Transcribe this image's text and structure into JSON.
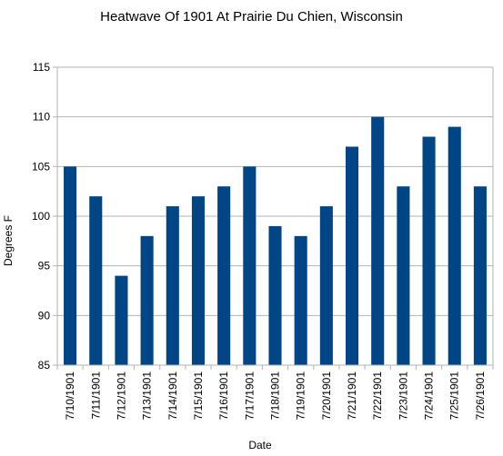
{
  "chart_data": {
    "type": "bar",
    "title": "Heatwave Of 1901 At Prairie Du Chien, Wisconsin",
    "xlabel": "Date",
    "ylabel": "Degrees F",
    "categories": [
      "7/10/1901",
      "7/11/1901",
      "7/12/1901",
      "7/13/1901",
      "7/14/1901",
      "7/15/1901",
      "7/16/1901",
      "7/17/1901",
      "7/18/1901",
      "7/19/1901",
      "7/20/1901",
      "7/21/1901",
      "7/22/1901",
      "7/23/1901",
      "7/24/1901",
      "7/25/1901",
      "7/26/1901"
    ],
    "values": [
      105,
      102,
      94,
      98,
      101,
      102,
      103,
      105,
      99,
      98,
      101,
      107,
      110,
      103,
      108,
      109,
      103
    ],
    "ylim": [
      85,
      115
    ],
    "yticks": [
      85,
      90,
      95,
      100,
      105,
      110,
      115
    ],
    "grid": true,
    "legend": "none",
    "bar_color": "#004586",
    "grid_color": "#b3b3b3"
  }
}
